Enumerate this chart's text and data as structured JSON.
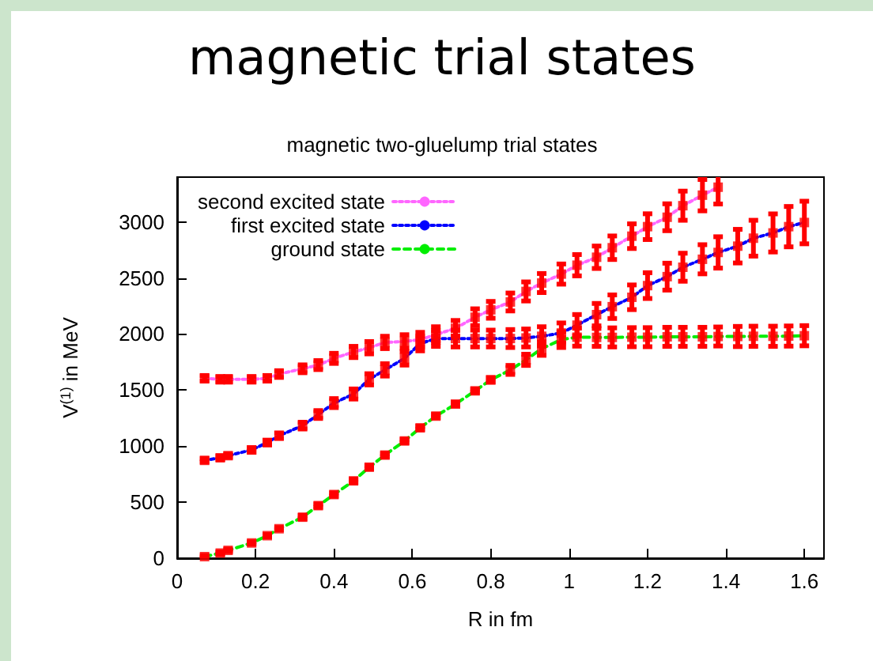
{
  "chart_data": {
    "type": "line",
    "title": "magnetic trial states",
    "subtitle": "magnetic two-gluelump trial states",
    "xlabel": "R in fm",
    "ylabel": "V$^{(1)}$ in MeV",
    "x": [
      0.07,
      0.11,
      0.13,
      0.19,
      0.23,
      0.26,
      0.32,
      0.36,
      0.4,
      0.45,
      0.49,
      0.53,
      0.58,
      0.62,
      0.66,
      0.71,
      0.76,
      0.8,
      0.85,
      0.89,
      0.93,
      0.98,
      1.02,
      1.07,
      1.11,
      1.16,
      1.2,
      1.25,
      1.29,
      1.34,
      1.38,
      1.43,
      1.47,
      1.52,
      1.56,
      1.6
    ],
    "series": [
      {
        "name": "second excited state",
        "color": "#ff66ff",
        "line_style": "dotted",
        "marker": "none",
        "x": [
          0.07,
          0.11,
          0.13,
          0.19,
          0.23,
          0.26,
          0.32,
          0.36,
          0.4,
          0.45,
          0.49,
          0.53,
          0.58,
          0.62,
          0.66,
          0.71,
          0.76,
          0.8,
          0.85,
          0.89,
          0.93,
          0.98,
          1.02,
          1.07,
          1.11,
          1.16,
          1.2,
          1.25,
          1.29,
          1.34,
          1.38
        ],
        "values": [
          1605,
          1596,
          1596,
          1596,
          1605,
          1643,
          1690,
          1723,
          1783,
          1840,
          1878,
          1925,
          1934,
          1950,
          1995,
          2051,
          2150,
          2216,
          2286,
          2380,
          2455,
          2535,
          2614,
          2685,
          2770,
          2873,
          2958,
          3042,
          3145,
          3239,
          3310
        ]
      },
      {
        "name": "first excited state",
        "color": "#0000ff",
        "line_style": "dotted",
        "marker": "none",
        "values": [
          873,
          896,
          915,
          966,
          1032,
          1093,
          1183,
          1282,
          1384,
          1465,
          1596,
          1680,
          1783,
          1915,
          1960,
          1960,
          1960,
          1960,
          1960,
          1965,
          1980,
          2009,
          2079,
          2173,
          2244,
          2328,
          2432,
          2512,
          2596,
          2667,
          2728,
          2784,
          2855,
          2902,
          2958,
          2995
        ]
      },
      {
        "name": "ground state",
        "color": "#00ee00",
        "line_style": "dashed",
        "marker": "none",
        "values": [
          14,
          46,
          70,
          136,
          201,
          263,
          366,
          469,
          568,
          690,
          812,
          920,
          1046,
          1163,
          1268,
          1375,
          1493,
          1591,
          1680,
          1770,
          1870,
          1950,
          1972,
          1970,
          1970,
          1972,
          1972,
          1975,
          1975,
          1975,
          1978,
          1978,
          1980,
          1980,
          1982,
          1985
        ]
      },
      {
        "type": "scatter",
        "color": "#ff0000",
        "marker": "square",
        "x": [
          0.07,
          0.11,
          0.13,
          0.19,
          0.23,
          0.26,
          0.32,
          0.36,
          0.4,
          0.45,
          0.49,
          0.53,
          0.58,
          0.62,
          0.66,
          0.71,
          0.76,
          0.8,
          0.85,
          0.89,
          0.93,
          0.98,
          1.02,
          1.07,
          1.11,
          1.16,
          1.2,
          1.25,
          1.29,
          1.34,
          1.38
        ],
        "values": [
          1605,
          1596,
          1596,
          1596,
          1605,
          1643,
          1690,
          1723,
          1783,
          1840,
          1878,
          1925,
          1934,
          1950,
          1995,
          2051,
          2150,
          2216,
          2286,
          2380,
          2455,
          2535,
          2614,
          2685,
          2770,
          2873,
          2958,
          3042,
          3145,
          3239,
          3310
        ],
        "errors": [
          25,
          25,
          25,
          25,
          25,
          30,
          35,
          40,
          45,
          50,
          55,
          55,
          60,
          65,
          70,
          70,
          75,
          75,
          80,
          85,
          85,
          90,
          95,
          100,
          105,
          110,
          115,
          120,
          130,
          140,
          150
        ]
      },
      {
        "type": "scatter",
        "color": "#ff0000",
        "marker": "square",
        "values": [
          873,
          896,
          915,
          966,
          1032,
          1093,
          1183,
          1282,
          1384,
          1465,
          1596,
          1680,
          1783,
          1915,
          1960,
          1960,
          1960,
          1960,
          1960,
          1965,
          1980,
          2009,
          2079,
          2173,
          2244,
          2328,
          2432,
          2512,
          2596,
          2667,
          2728,
          2784,
          2855,
          2902,
          2958,
          2995
        ],
        "errors": [
          15,
          15,
          15,
          20,
          20,
          25,
          30,
          35,
          40,
          45,
          50,
          55,
          60,
          65,
          70,
          75,
          75,
          75,
          80,
          80,
          85,
          90,
          95,
          100,
          105,
          110,
          115,
          120,
          125,
          130,
          140,
          150,
          160,
          170,
          180,
          190
        ]
      },
      {
        "type": "scatter",
        "color": "#ff0000",
        "marker": "square",
        "values": [
          14,
          46,
          70,
          136,
          201,
          263,
          366,
          469,
          568,
          690,
          812,
          920,
          1046,
          1163,
          1268,
          1375,
          1493,
          1591,
          1680,
          1770,
          1870,
          1950,
          1972,
          1970,
          1970,
          1972,
          1972,
          1975,
          1975,
          1975,
          1978,
          1978,
          1980,
          1980,
          1982,
          1985
        ],
        "errors": [
          10,
          10,
          10,
          10,
          10,
          10,
          15,
          15,
          15,
          15,
          15,
          15,
          15,
          15,
          15,
          15,
          15,
          20,
          40,
          50,
          60,
          70,
          80,
          80,
          85,
          85,
          85,
          85,
          85,
          85,
          85,
          90,
          90,
          90,
          90,
          90
        ]
      }
    ],
    "xlim": [
      0,
      1.65
    ],
    "xticks": [
      0,
      0.2,
      0.4,
      0.6,
      0.8,
      1,
      1.2,
      1.4,
      1.6
    ],
    "ylim": [
      0,
      3400
    ],
    "yticks": [
      0,
      500,
      1000,
      1500,
      2000,
      2500,
      3000
    ],
    "grid": false,
    "legend": "top left"
  }
}
